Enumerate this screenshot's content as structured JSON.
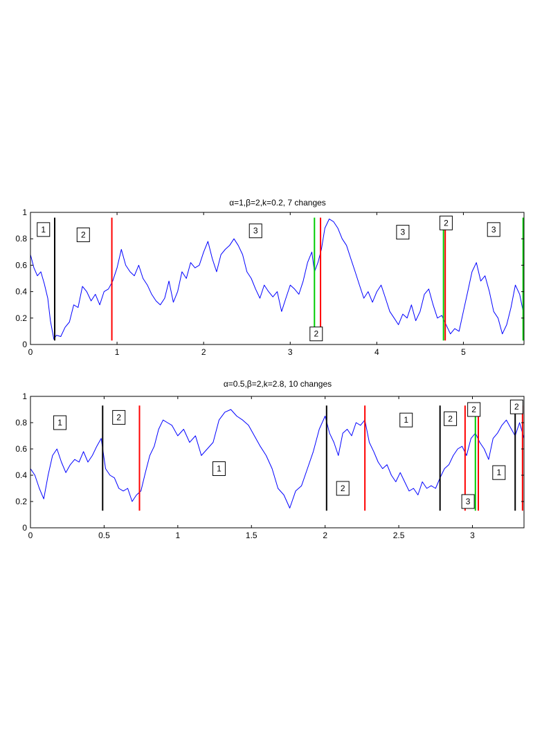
{
  "chart_data": [
    {
      "type": "line",
      "title": "α=1,β=2,k=0.2, 7 changes",
      "xlim": [
        0,
        5.7
      ],
      "ylim": [
        0,
        1
      ],
      "x_ticks": [
        0,
        1,
        2,
        3,
        4,
        5
      ],
      "x_tick_labels": [
        "0",
        "1",
        "2",
        "3",
        "4",
        "5"
      ],
      "y_ticks": [
        0,
        0.2,
        0.4,
        0.6,
        0.8,
        1
      ],
      "y_tick_labels": [
        "0",
        "0.2",
        "0.4",
        "0.6",
        "0.8",
        "1"
      ],
      "series_color": "#0000ff",
      "series_points": [
        [
          0,
          0.68
        ],
        [
          0.04,
          0.58
        ],
        [
          0.08,
          0.52
        ],
        [
          0.12,
          0.55
        ],
        [
          0.16,
          0.46
        ],
        [
          0.2,
          0.35
        ],
        [
          0.23,
          0.18
        ],
        [
          0.27,
          0.04
        ],
        [
          0.3,
          0.07
        ],
        [
          0.35,
          0.06
        ],
        [
          0.4,
          0.13
        ],
        [
          0.45,
          0.17
        ],
        [
          0.5,
          0.3
        ],
        [
          0.55,
          0.28
        ],
        [
          0.6,
          0.44
        ],
        [
          0.65,
          0.4
        ],
        [
          0.7,
          0.33
        ],
        [
          0.75,
          0.38
        ],
        [
          0.8,
          0.3
        ],
        [
          0.85,
          0.4
        ],
        [
          0.9,
          0.42
        ],
        [
          0.95,
          0.48
        ],
        [
          1.0,
          0.58
        ],
        [
          1.05,
          0.72
        ],
        [
          1.1,
          0.6
        ],
        [
          1.15,
          0.55
        ],
        [
          1.2,
          0.52
        ],
        [
          1.25,
          0.6
        ],
        [
          1.3,
          0.5
        ],
        [
          1.35,
          0.45
        ],
        [
          1.4,
          0.38
        ],
        [
          1.45,
          0.33
        ],
        [
          1.5,
          0.3
        ],
        [
          1.55,
          0.35
        ],
        [
          1.6,
          0.48
        ],
        [
          1.65,
          0.32
        ],
        [
          1.7,
          0.4
        ],
        [
          1.75,
          0.55
        ],
        [
          1.8,
          0.5
        ],
        [
          1.85,
          0.62
        ],
        [
          1.9,
          0.58
        ],
        [
          1.95,
          0.6
        ],
        [
          2.0,
          0.7
        ],
        [
          2.05,
          0.78
        ],
        [
          2.1,
          0.65
        ],
        [
          2.15,
          0.55
        ],
        [
          2.2,
          0.68
        ],
        [
          2.25,
          0.72
        ],
        [
          2.3,
          0.75
        ],
        [
          2.35,
          0.8
        ],
        [
          2.4,
          0.75
        ],
        [
          2.45,
          0.68
        ],
        [
          2.5,
          0.55
        ],
        [
          2.55,
          0.5
        ],
        [
          2.6,
          0.42
        ],
        [
          2.65,
          0.35
        ],
        [
          2.7,
          0.45
        ],
        [
          2.75,
          0.4
        ],
        [
          2.8,
          0.36
        ],
        [
          2.85,
          0.4
        ],
        [
          2.9,
          0.25
        ],
        [
          2.95,
          0.35
        ],
        [
          3.0,
          0.45
        ],
        [
          3.05,
          0.42
        ],
        [
          3.1,
          0.38
        ],
        [
          3.15,
          0.48
        ],
        [
          3.2,
          0.62
        ],
        [
          3.25,
          0.7
        ],
        [
          3.28,
          0.55
        ],
        [
          3.32,
          0.62
        ],
        [
          3.36,
          0.72
        ],
        [
          3.4,
          0.88
        ],
        [
          3.45,
          0.95
        ],
        [
          3.5,
          0.93
        ],
        [
          3.55,
          0.88
        ],
        [
          3.6,
          0.8
        ],
        [
          3.65,
          0.75
        ],
        [
          3.7,
          0.65
        ],
        [
          3.75,
          0.55
        ],
        [
          3.8,
          0.45
        ],
        [
          3.85,
          0.35
        ],
        [
          3.9,
          0.4
        ],
        [
          3.95,
          0.32
        ],
        [
          4.0,
          0.4
        ],
        [
          4.05,
          0.45
        ],
        [
          4.1,
          0.35
        ],
        [
          4.15,
          0.25
        ],
        [
          4.2,
          0.2
        ],
        [
          4.25,
          0.15
        ],
        [
          4.3,
          0.23
        ],
        [
          4.35,
          0.2
        ],
        [
          4.4,
          0.3
        ],
        [
          4.45,
          0.18
        ],
        [
          4.5,
          0.25
        ],
        [
          4.55,
          0.38
        ],
        [
          4.6,
          0.42
        ],
        [
          4.65,
          0.3
        ],
        [
          4.7,
          0.2
        ],
        [
          4.75,
          0.22
        ],
        [
          4.8,
          0.15
        ],
        [
          4.85,
          0.08
        ],
        [
          4.9,
          0.12
        ],
        [
          4.95,
          0.1
        ],
        [
          5.0,
          0.25
        ],
        [
          5.05,
          0.4
        ],
        [
          5.1,
          0.55
        ],
        [
          5.15,
          0.62
        ],
        [
          5.2,
          0.48
        ],
        [
          5.25,
          0.52
        ],
        [
          5.3,
          0.4
        ],
        [
          5.35,
          0.25
        ],
        [
          5.4,
          0.2
        ],
        [
          5.45,
          0.08
        ],
        [
          5.5,
          0.15
        ],
        [
          5.55,
          0.28
        ],
        [
          5.6,
          0.45
        ],
        [
          5.65,
          0.38
        ],
        [
          5.7,
          0.22
        ]
      ],
      "change_lines": [
        {
          "x": 0.28,
          "y0": 0.03,
          "y1": 0.96,
          "color": "#000000"
        },
        {
          "x": 0.94,
          "y0": 0.03,
          "y1": 0.96,
          "color": "#ff0000"
        },
        {
          "x": 3.28,
          "y0": 0.03,
          "y1": 0.96,
          "color": "#00cc00"
        },
        {
          "x": 3.35,
          "y0": 0.03,
          "y1": 0.96,
          "color": "#ff0000"
        },
        {
          "x": 4.77,
          "y0": 0.03,
          "y1": 0.96,
          "color": "#00cc00"
        },
        {
          "x": 4.79,
          "y0": 0.03,
          "y1": 0.96,
          "color": "#ff0000"
        },
        {
          "x": 5.69,
          "y0": 0.03,
          "y1": 0.96,
          "color": "#00cc00"
        }
      ],
      "state_labels": [
        {
          "x": 0.15,
          "y": 0.87,
          "text": "1"
        },
        {
          "x": 0.61,
          "y": 0.83,
          "text": "2"
        },
        {
          "x": 2.6,
          "y": 0.86,
          "text": "3"
        },
        {
          "x": 3.3,
          "y": 0.08,
          "text": "2"
        },
        {
          "x": 4.3,
          "y": 0.85,
          "text": "3"
        },
        {
          "x": 4.8,
          "y": 0.92,
          "text": "2"
        },
        {
          "x": 5.35,
          "y": 0.87,
          "text": "3"
        }
      ]
    },
    {
      "type": "line",
      "title": "α=0.5,β=2,k=2.8, 10 changes",
      "xlim": [
        0,
        3.35
      ],
      "ylim": [
        0,
        1
      ],
      "x_ticks": [
        0,
        0.5,
        1,
        1.5,
        2,
        2.5,
        3
      ],
      "x_tick_labels": [
        "0",
        "0.5",
        "1",
        "1.5",
        "2",
        "2.5",
        "3"
      ],
      "y_ticks": [
        0,
        0.2,
        0.4,
        0.6,
        0.8,
        1
      ],
      "y_tick_labels": [
        "0",
        "0.2",
        "0.4",
        "0.6",
        "0.8",
        "1"
      ],
      "series_color": "#0000ff",
      "series_points": [
        [
          0,
          0.45
        ],
        [
          0.03,
          0.4
        ],
        [
          0.06,
          0.3
        ],
        [
          0.09,
          0.22
        ],
        [
          0.12,
          0.4
        ],
        [
          0.15,
          0.55
        ],
        [
          0.18,
          0.6
        ],
        [
          0.21,
          0.5
        ],
        [
          0.24,
          0.42
        ],
        [
          0.27,
          0.48
        ],
        [
          0.3,
          0.52
        ],
        [
          0.33,
          0.5
        ],
        [
          0.36,
          0.58
        ],
        [
          0.39,
          0.5
        ],
        [
          0.42,
          0.55
        ],
        [
          0.45,
          0.62
        ],
        [
          0.48,
          0.68
        ],
        [
          0.51,
          0.45
        ],
        [
          0.54,
          0.4
        ],
        [
          0.57,
          0.38
        ],
        [
          0.6,
          0.3
        ],
        [
          0.63,
          0.28
        ],
        [
          0.66,
          0.3
        ],
        [
          0.69,
          0.2
        ],
        [
          0.72,
          0.25
        ],
        [
          0.75,
          0.28
        ],
        [
          0.78,
          0.42
        ],
        [
          0.81,
          0.55
        ],
        [
          0.84,
          0.62
        ],
        [
          0.87,
          0.75
        ],
        [
          0.9,
          0.82
        ],
        [
          0.93,
          0.8
        ],
        [
          0.96,
          0.78
        ],
        [
          1.0,
          0.7
        ],
        [
          1.04,
          0.75
        ],
        [
          1.08,
          0.65
        ],
        [
          1.12,
          0.7
        ],
        [
          1.16,
          0.55
        ],
        [
          1.2,
          0.6
        ],
        [
          1.24,
          0.65
        ],
        [
          1.28,
          0.82
        ],
        [
          1.32,
          0.88
        ],
        [
          1.36,
          0.9
        ],
        [
          1.4,
          0.85
        ],
        [
          1.44,
          0.82
        ],
        [
          1.48,
          0.78
        ],
        [
          1.52,
          0.7
        ],
        [
          1.56,
          0.62
        ],
        [
          1.6,
          0.55
        ],
        [
          1.64,
          0.45
        ],
        [
          1.68,
          0.3
        ],
        [
          1.72,
          0.25
        ],
        [
          1.76,
          0.15
        ],
        [
          1.8,
          0.28
        ],
        [
          1.84,
          0.32
        ],
        [
          1.88,
          0.45
        ],
        [
          1.92,
          0.58
        ],
        [
          1.96,
          0.75
        ],
        [
          2.0,
          0.85
        ],
        [
          2.03,
          0.72
        ],
        [
          2.06,
          0.65
        ],
        [
          2.09,
          0.55
        ],
        [
          2.12,
          0.72
        ],
        [
          2.15,
          0.75
        ],
        [
          2.18,
          0.7
        ],
        [
          2.21,
          0.8
        ],
        [
          2.24,
          0.78
        ],
        [
          2.27,
          0.82
        ],
        [
          2.3,
          0.65
        ],
        [
          2.33,
          0.58
        ],
        [
          2.36,
          0.5
        ],
        [
          2.39,
          0.45
        ],
        [
          2.42,
          0.48
        ],
        [
          2.45,
          0.4
        ],
        [
          2.48,
          0.35
        ],
        [
          2.51,
          0.42
        ],
        [
          2.54,
          0.35
        ],
        [
          2.57,
          0.28
        ],
        [
          2.6,
          0.3
        ],
        [
          2.63,
          0.25
        ],
        [
          2.66,
          0.35
        ],
        [
          2.69,
          0.3
        ],
        [
          2.72,
          0.32
        ],
        [
          2.75,
          0.3
        ],
        [
          2.78,
          0.38
        ],
        [
          2.81,
          0.45
        ],
        [
          2.84,
          0.48
        ],
        [
          2.87,
          0.55
        ],
        [
          2.9,
          0.6
        ],
        [
          2.93,
          0.62
        ],
        [
          2.96,
          0.55
        ],
        [
          2.99,
          0.68
        ],
        [
          3.02,
          0.72
        ],
        [
          3.05,
          0.65
        ],
        [
          3.08,
          0.6
        ],
        [
          3.11,
          0.52
        ],
        [
          3.14,
          0.68
        ],
        [
          3.17,
          0.72
        ],
        [
          3.2,
          0.78
        ],
        [
          3.23,
          0.82
        ],
        [
          3.26,
          0.76
        ],
        [
          3.29,
          0.7
        ],
        [
          3.32,
          0.8
        ],
        [
          3.35,
          0.68
        ]
      ],
      "change_lines": [
        {
          "x": 0.49,
          "y0": 0.13,
          "y1": 0.93,
          "color": "#000000"
        },
        {
          "x": 0.74,
          "y0": 0.13,
          "y1": 0.93,
          "color": "#ff0000"
        },
        {
          "x": 2.01,
          "y0": 0.13,
          "y1": 0.93,
          "color": "#000000"
        },
        {
          "x": 2.27,
          "y0": 0.13,
          "y1": 0.93,
          "color": "#ff0000"
        },
        {
          "x": 2.78,
          "y0": 0.13,
          "y1": 0.93,
          "color": "#000000"
        },
        {
          "x": 2.95,
          "y0": 0.13,
          "y1": 0.93,
          "color": "#ff0000"
        },
        {
          "x": 3.02,
          "y0": 0.13,
          "y1": 0.93,
          "color": "#00cc00"
        },
        {
          "x": 3.04,
          "y0": 0.13,
          "y1": 0.93,
          "color": "#ff0000"
        },
        {
          "x": 3.29,
          "y0": 0.13,
          "y1": 0.93,
          "color": "#000000"
        },
        {
          "x": 3.34,
          "y0": 0.13,
          "y1": 0.93,
          "color": "#ff0000"
        }
      ],
      "state_labels": [
        {
          "x": 0.2,
          "y": 0.8,
          "text": "1"
        },
        {
          "x": 0.6,
          "y": 0.84,
          "text": "2"
        },
        {
          "x": 1.28,
          "y": 0.45,
          "text": "1"
        },
        {
          "x": 2.12,
          "y": 0.3,
          "text": "2"
        },
        {
          "x": 2.55,
          "y": 0.82,
          "text": "1"
        },
        {
          "x": 2.85,
          "y": 0.83,
          "text": "2"
        },
        {
          "x": 3.01,
          "y": 0.9,
          "text": "2"
        },
        {
          "x": 2.97,
          "y": 0.2,
          "text": "3"
        },
        {
          "x": 3.18,
          "y": 0.42,
          "text": "1"
        },
        {
          "x": 3.3,
          "y": 0.92,
          "text": "2"
        }
      ]
    }
  ]
}
